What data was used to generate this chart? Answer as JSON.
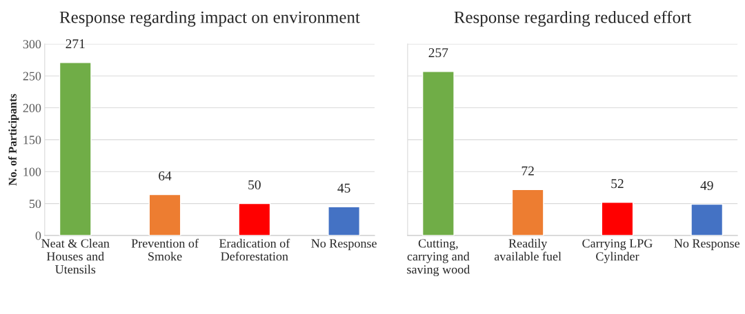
{
  "chart_data": [
    {
      "type": "bar",
      "title": "Response regarding impact on environment",
      "ylabel": "No. of Participants",
      "categories": [
        "Neat & Clean\nHouses and\nUtensils",
        "Prevention of\nSmoke",
        "Eradication of\nDeforestation",
        "No Response"
      ],
      "values": [
        271,
        64,
        50,
        45
      ],
      "colors": [
        "#70ad47",
        "#ed7d31",
        "#ff0000",
        "#4472c4"
      ],
      "ylim": [
        0,
        300
      ],
      "yticks": [
        0,
        50,
        100,
        150,
        200,
        250,
        300
      ],
      "grid": "y",
      "data_labels": true
    },
    {
      "type": "bar",
      "title": "Response regarding reduced effort",
      "categories": [
        "Cutting,\ncarrying and\nsaving wood",
        "Readily\navailable fuel",
        "Carrying LPG\nCylinder",
        "No Response"
      ],
      "values": [
        257,
        72,
        52,
        49
      ],
      "colors": [
        "#70ad47",
        "#ed7d31",
        "#ff0000",
        "#4472c4"
      ],
      "ylim": [
        0,
        300
      ],
      "yticks": [
        {
          "value": 0,
          "label": null
        },
        {
          "value": 50,
          "label": null
        },
        {
          "value": 100,
          "label": null
        },
        {
          "value": 150,
          "label": null
        },
        {
          "value": 200,
          "label": null
        },
        {
          "value": 250,
          "label": null
        },
        {
          "value": 300,
          "label": null
        }
      ],
      "grid": "y",
      "data_labels": true,
      "tick_labels": "x"
    }
  ]
}
